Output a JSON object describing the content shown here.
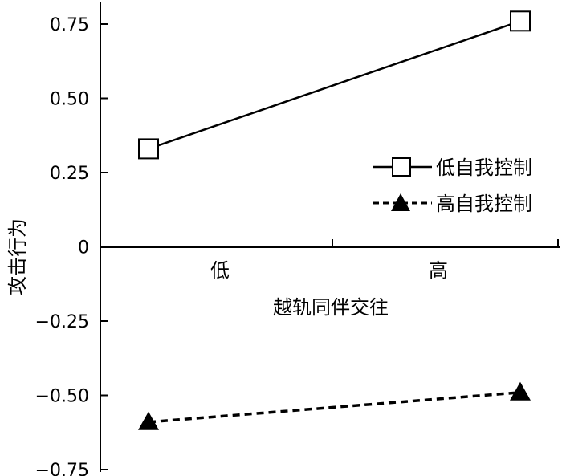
{
  "chart_data": {
    "type": "line",
    "title": "",
    "xlabel": "越轨同伴交往",
    "ylabel": "攻击行为",
    "categories": [
      "低",
      "高"
    ],
    "ylim": [
      -0.75,
      0.75
    ],
    "yticks": [
      "−0.75",
      "−0.50",
      "−0.25",
      "0",
      "0.25",
      "0.50",
      "0.75"
    ],
    "ytick_values": [
      -0.75,
      -0.5,
      -0.25,
      0,
      0.25,
      0.5,
      0.75
    ],
    "legend_position": "right",
    "series": [
      {
        "name": "低自我控制",
        "values": [
          0.33,
          0.76
        ],
        "marker": "open-square",
        "line": "solid",
        "color": "#000000"
      },
      {
        "name": "高自我控制",
        "values": [
          -0.59,
          -0.49
        ],
        "marker": "filled-triangle",
        "line": "dashed",
        "color": "#000000"
      }
    ]
  }
}
